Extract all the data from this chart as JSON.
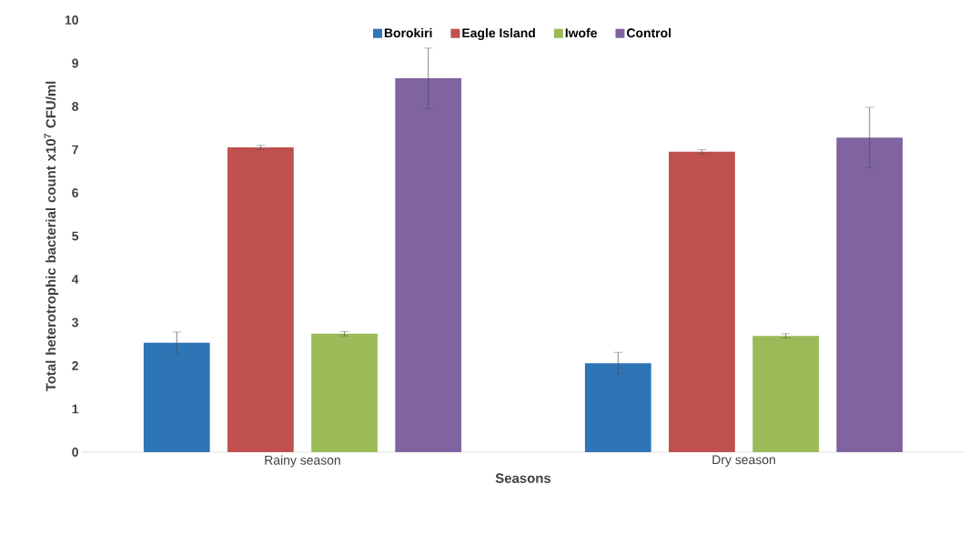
{
  "chart_data": {
    "type": "bar",
    "xlabel": "Seasons",
    "ylabel": "Total heterotrophic bacterial count x10$^{7}$ CFU/ml",
    "categories": [
      "Rainy season",
      "Dry season"
    ],
    "series": [
      {
        "name": "Borokiri",
        "color": "#2e75b6",
        "values": [
          2.53,
          2.06
        ],
        "errors": [
          0.25,
          0.25
        ]
      },
      {
        "name": "Eagle Island",
        "color": "#c0504d",
        "values": [
          7.05,
          6.95
        ],
        "errors": [
          0.05,
          0.05
        ]
      },
      {
        "name": "Iwofe",
        "color": "#9bbb59",
        "values": [
          2.74,
          2.69
        ],
        "errors": [
          0.05,
          0.05
        ]
      },
      {
        "name": "Control",
        "color": "#8064a2",
        "values": [
          8.65,
          7.28
        ],
        "errors": [
          0.7,
          0.7
        ]
      }
    ],
    "ylim": [
      0,
      10
    ],
    "yticks": [
      0,
      1,
      2,
      3,
      4,
      5,
      6,
      7,
      8,
      9,
      10
    ],
    "legend": "top",
    "grid": false
  }
}
